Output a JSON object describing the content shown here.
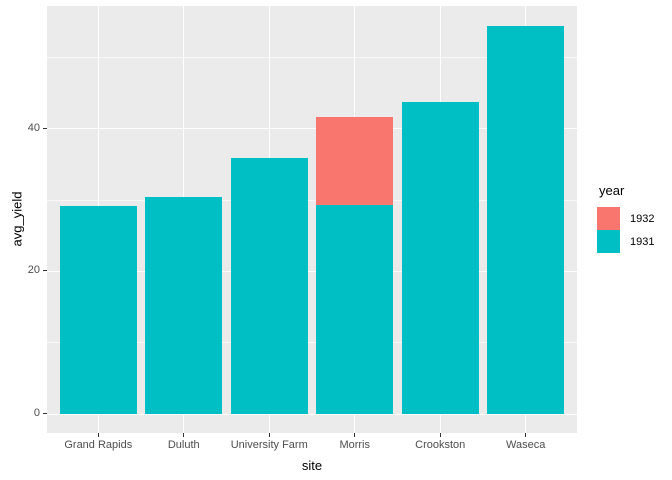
{
  "figure": {
    "style": "ggplot2 gray theme",
    "background": "#FFFFFF",
    "panel_background": "#EBEBEB",
    "gridline_color": "#FFFFFF",
    "tick_mark_color": "#333333",
    "tick_label_color": "#4D4D4D"
  },
  "y_axis": {
    "title": "avg_yield",
    "tick_labels": [
      "0",
      "20",
      "40"
    ]
  },
  "x_axis": {
    "title": "site",
    "tick_labels": [
      "Grand Rapids",
      "Duluth",
      "University Farm",
      "Morris",
      "Crookston",
      "Waseca"
    ]
  },
  "legend": {
    "title": "year",
    "position": "right",
    "items": [
      {
        "label": "1932",
        "color": "#F8766D"
      },
      {
        "label": "1931",
        "color": "#00BFC4"
      }
    ]
  },
  "chart_data": {
    "type": "bar",
    "title": "",
    "xlabel": "site",
    "ylabel": "avg_yield",
    "categories": [
      "Grand Rapids",
      "Duluth",
      "University Farm",
      "Morris",
      "Crookston",
      "Waseca"
    ],
    "series": [
      {
        "name": "1932",
        "color": "#F8766D",
        "values": [
          null,
          null,
          null,
          41.5,
          null,
          null
        ]
      },
      {
        "name": "1931",
        "color": "#00BFC4",
        "values": [
          29.1,
          30.3,
          35.8,
          29.3,
          43.7,
          54.3
        ]
      }
    ],
    "bar_position": "identity (overlapping, 1931 drawn in front)",
    "bar_width_fraction": 0.9,
    "y_major_ticks": [
      0,
      20,
      40
    ],
    "y_minor_gridlines": [
      10,
      30,
      50
    ],
    "ylim": [
      -2.7,
      57.1
    ],
    "grid": true,
    "legend_title": "year",
    "legend_position": "right"
  }
}
